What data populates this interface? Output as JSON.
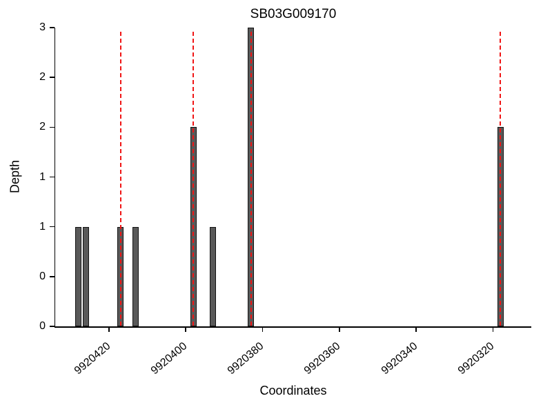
{
  "chart_data": {
    "type": "bar",
    "title": "SB03G009170",
    "xlabel": "Coordinates",
    "ylabel": "Depth",
    "x_reversed": true,
    "x_range": [
      9920434,
      9920310
    ],
    "x_ticks": [
      9920420,
      9920400,
      9920380,
      9920360,
      9920340,
      9920320
    ],
    "x_tick_labels": [
      "9920420",
      "9920400",
      "9920380",
      "9920360",
      "9920340",
      "9920320"
    ],
    "y_range": [
      0,
      3
    ],
    "y_ticks": [
      0,
      0.5,
      1,
      1.5,
      2,
      2.5,
      3
    ],
    "y_tick_labels": [
      "0",
      "0",
      "1",
      "1",
      "2",
      "2",
      "3"
    ],
    "bars": [
      {
        "coordinate": 9920428,
        "depth": 1
      },
      {
        "coordinate": 9920426,
        "depth": 1
      },
      {
        "coordinate": 9920417,
        "depth": 1
      },
      {
        "coordinate": 9920413,
        "depth": 1
      },
      {
        "coordinate": 9920398,
        "depth": 2
      },
      {
        "coordinate": 9920393,
        "depth": 1
      },
      {
        "coordinate": 9920383,
        "depth": 3
      },
      {
        "coordinate": 9920318,
        "depth": 2
      }
    ],
    "bar_width_units": 1.6,
    "marker_lines": [
      9920417,
      9920398,
      9920383,
      9920318
    ],
    "colors": {
      "bar_fill": "#595959",
      "bar_edge": "#111111",
      "marker_line": "#f01414",
      "axis": "#000000",
      "background": "#ffffff"
    }
  }
}
